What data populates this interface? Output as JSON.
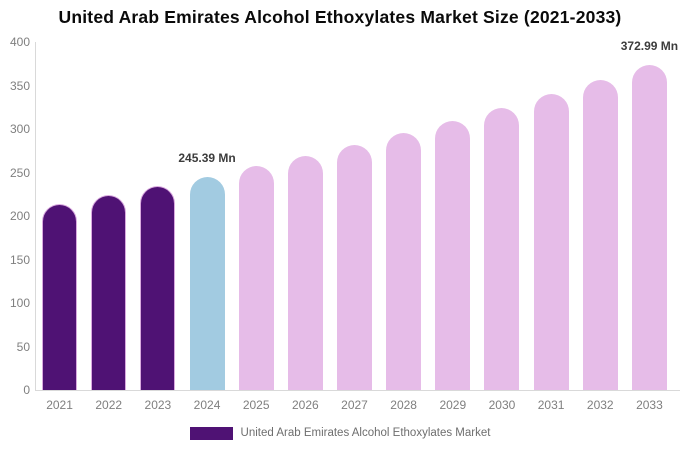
{
  "title": "United Arab Emirates Alcohol Ethoxylates Market Size (2021-2033)",
  "legend": {
    "label": "United Arab Emirates Alcohol Ethoxylates Market",
    "swatch_color": "#4F1274"
  },
  "colors": {
    "past_bar": "#4F1274",
    "current_bar": "#A2CBE1",
    "forecast_bar": "#E6BCE8",
    "axis_line": "#D9D9D9",
    "tick_text": "#7F7F7F",
    "annotation_text": "#3C3C3C"
  },
  "chart_data": {
    "type": "bar",
    "title": "United Arab Emirates Alcohol Ethoxylates Market Size (2021-2033)",
    "categories": [
      "2021",
      "2022",
      "2023",
      "2024",
      "2025",
      "2026",
      "2027",
      "2028",
      "2029",
      "2030",
      "2031",
      "2032",
      "2033"
    ],
    "series": [
      {
        "name": "United Arab Emirates Alcohol Ethoxylates Market",
        "values": [
          213.4,
          223.6,
          234.2,
          245.39,
          257.1,
          269.3,
          282.1,
          295.6,
          309.6,
          324.4,
          339.8,
          356.0,
          372.99
        ]
      }
    ],
    "value_unit": "Mn",
    "ylim": [
      0,
      400
    ],
    "yticks": [
      0,
      50,
      100,
      150,
      200,
      250,
      300,
      350,
      400
    ],
    "grid": false,
    "legend_position": "bottom",
    "bar_roles": [
      "past",
      "past",
      "past",
      "current",
      "forecast",
      "forecast",
      "forecast",
      "forecast",
      "forecast",
      "forecast",
      "forecast",
      "forecast",
      "forecast"
    ],
    "annotations": [
      {
        "category": "2024",
        "text": "245.39 Mn"
      },
      {
        "category": "2033",
        "text": "372.99 Mn"
      }
    ]
  }
}
